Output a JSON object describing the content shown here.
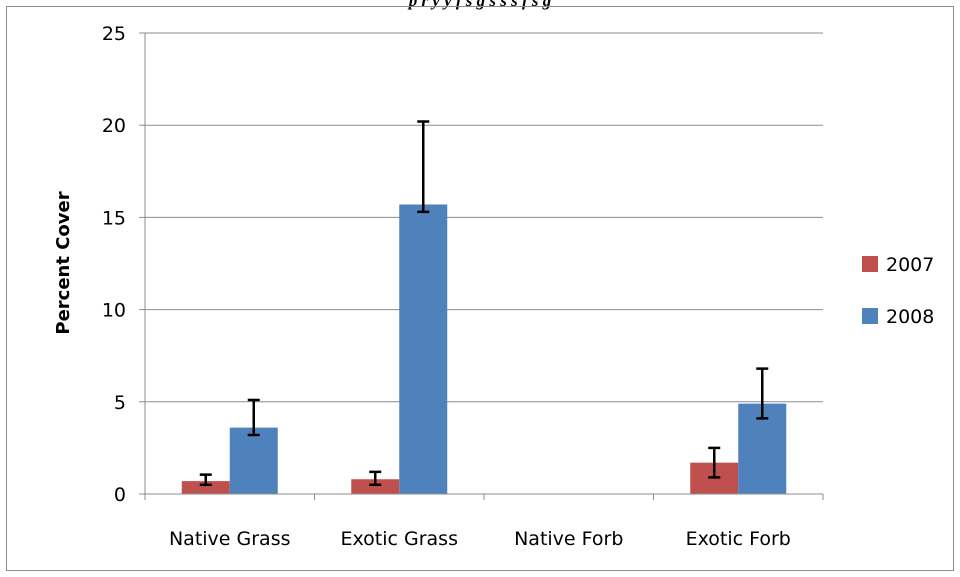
{
  "caption_partial": "p    r        y y  f  s     g  s     s     s    f    s     g",
  "chart_data": {
    "type": "bar",
    "title": "",
    "xlabel": "",
    "ylabel": "Percent Cover",
    "ylim": [
      0,
      25
    ],
    "yticks": [
      0,
      5,
      10,
      15,
      20,
      25
    ],
    "grid": true,
    "legend_position": "right",
    "categories": [
      "Native Grass",
      "Exotic Grass",
      "Native Forb",
      "Exotic Forb"
    ],
    "series": [
      {
        "name": "2007",
        "color": "#c0504d",
        "values": [
          0.7,
          0.8,
          0,
          1.7
        ],
        "error_low": [
          0.5,
          0.5,
          null,
          0.9
        ],
        "error_high": [
          1.05,
          1.2,
          null,
          2.5
        ]
      },
      {
        "name": "2008",
        "color": "#4f81bd",
        "values": [
          3.6,
          15.7,
          0,
          4.9
        ],
        "error_low": [
          3.2,
          15.3,
          null,
          4.1
        ],
        "error_high": [
          5.1,
          20.2,
          null,
          6.8
        ]
      }
    ]
  }
}
